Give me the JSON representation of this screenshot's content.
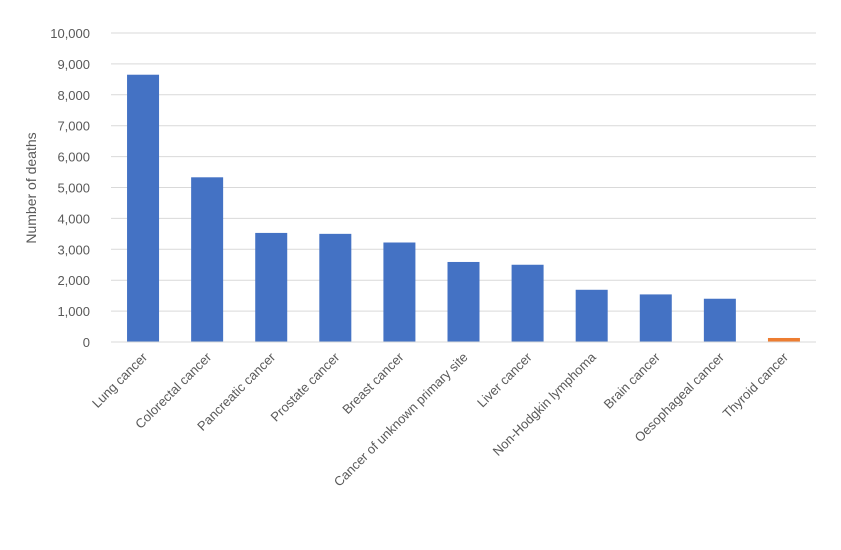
{
  "chart_data": {
    "type": "bar",
    "title": "",
    "xlabel": "",
    "ylabel": "Number of deaths",
    "ylim": [
      0,
      10000
    ],
    "yticks": [
      0,
      1000,
      2000,
      3000,
      4000,
      5000,
      6000,
      7000,
      8000,
      9000,
      10000
    ],
    "ytick_labels": [
      "0",
      "1,000",
      "2,000",
      "3,000",
      "4,000",
      "5,000",
      "6,000",
      "7,000",
      "8,000",
      "9,000",
      "10,000"
    ],
    "grid": true,
    "legend": "none",
    "categories": [
      "Lung cancer",
      "Colorectal cancer",
      "Pancreatic cancer",
      "Prostate cancer",
      "Breast cancer",
      "Cancer of unknown primary site",
      "Liver cancer",
      "Non-Hodgkin lymphoma",
      "Brain cancer",
      "Oesophageal cancer",
      "Thyroid cancer"
    ],
    "values": [
      8650,
      5330,
      3530,
      3500,
      3220,
      2590,
      2500,
      1690,
      1540,
      1400,
      130
    ],
    "bar_colors": [
      "#4472c4",
      "#4472c4",
      "#4472c4",
      "#4472c4",
      "#4472c4",
      "#4472c4",
      "#4472c4",
      "#4472c4",
      "#4472c4",
      "#4472c4",
      "#ed7d31"
    ]
  }
}
